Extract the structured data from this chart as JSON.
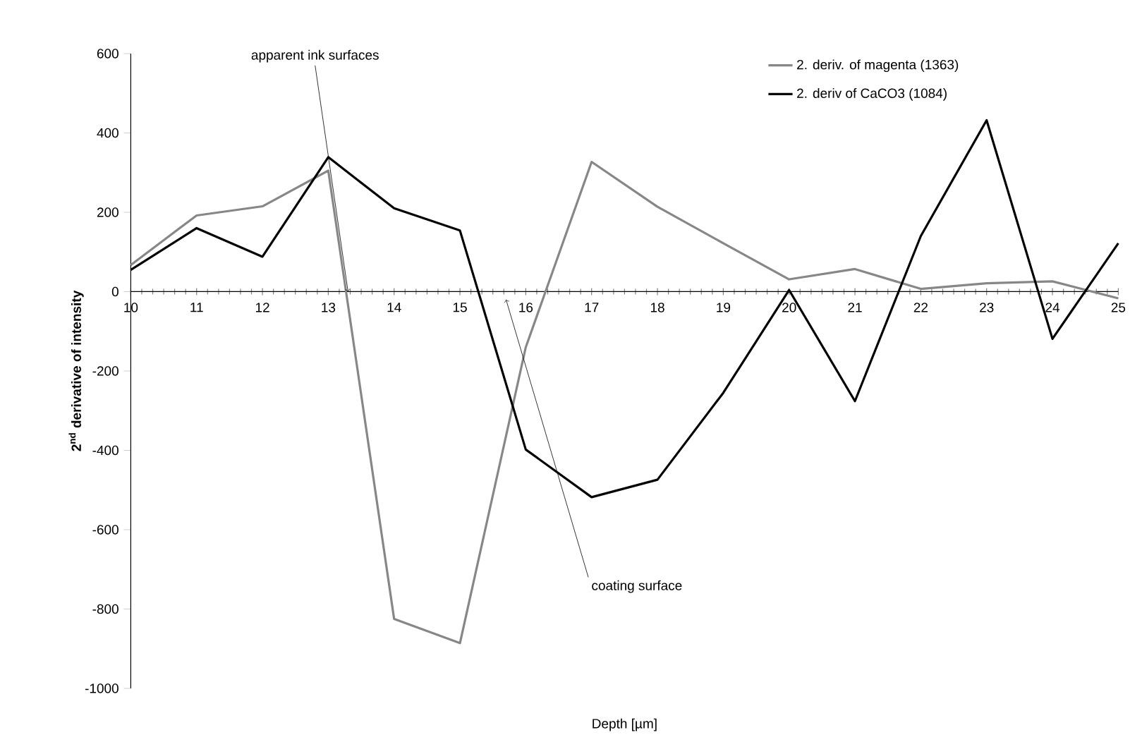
{
  "chart_data": {
    "type": "line",
    "xlabel": "Depth [µm]",
    "ylabel": "2$^{nd}$ derivative of intensity",
    "x": [
      10,
      11,
      12,
      13,
      14,
      15,
      16,
      17,
      18,
      19,
      20,
      21,
      22,
      23,
      24,
      25
    ],
    "series": [
      {
        "name": "2. deriv. of magenta (1363)",
        "color": "#878787",
        "values": [
          67,
          192,
          215,
          305,
          -825,
          -886,
          -140,
          327,
          214,
          122,
          31,
          57,
          7,
          21,
          26,
          -17
        ]
      },
      {
        "name": "2. deriv of CaCO3 (1084)",
        "color": "#000000",
        "values": [
          55,
          160,
          88,
          339,
          210,
          154,
          -398,
          -518,
          -474,
          -255,
          4,
          -276,
          140,
          432,
          -119,
          122
        ]
      }
    ],
    "xlim": [
      10,
      25
    ],
    "ylim": [
      -1000,
      600
    ],
    "xticks": [
      10,
      11,
      12,
      13,
      14,
      15,
      16,
      17,
      18,
      19,
      20,
      21,
      22,
      23,
      24,
      25
    ],
    "yticks": [
      -1000,
      -800,
      -600,
      -400,
      -200,
      0,
      200,
      400,
      600
    ],
    "annotations": [
      {
        "text": "apparent ink surfaces",
        "x": 13.3,
        "y": 0
      },
      {
        "text": "coating surface",
        "x": 15.7,
        "y": -20
      }
    ],
    "legend": "top right",
    "grid": false,
    "marker": "none",
    "line_style": "solid"
  }
}
